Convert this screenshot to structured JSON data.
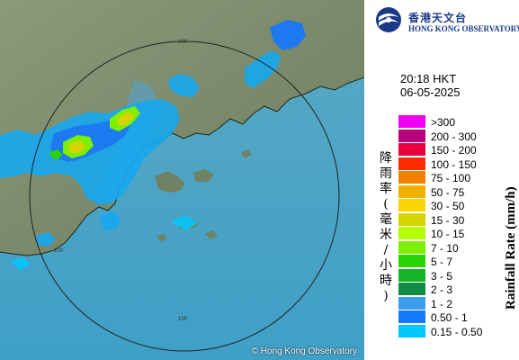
{
  "map": {
    "range_rings": [
      {
        "label": "100"
      },
      {
        "label": "100"
      },
      {
        "label": "100"
      }
    ],
    "copyright": "© Hong Kong Observatory"
  },
  "logo": {
    "name_zh": "香港天文台",
    "name_en": "HONG KONG OBSERVATORY",
    "icon": "hko-emblem-icon",
    "color": "#1a3a86"
  },
  "timestamp": {
    "time": "20:18 HKT",
    "date": "06-05-2025"
  },
  "legend": {
    "title_zh": "降雨率(毫米/小時)",
    "title_en": "Rainfall Rate (mm/h)",
    "items": [
      {
        "label": ">300",
        "color": "#f000f0"
      },
      {
        "label": "200 - 300",
        "color": "#b8007e"
      },
      {
        "label": "150 - 200",
        "color": "#e8003a"
      },
      {
        "label": "100 - 150",
        "color": "#ff2a00"
      },
      {
        "label": "75 - 100",
        "color": "#f08000"
      },
      {
        "label": "50 - 75",
        "color": "#f0b000"
      },
      {
        "label": "30 - 50",
        "color": "#f8d400"
      },
      {
        "label": "15 - 30",
        "color": "#d4d400"
      },
      {
        "label": "10 - 15",
        "color": "#b4ff00"
      },
      {
        "label": "7 - 10",
        "color": "#7cf000"
      },
      {
        "label": "5 - 7",
        "color": "#2ad400"
      },
      {
        "label": "3 - 5",
        "color": "#14b428"
      },
      {
        "label": "2 - 3",
        "color": "#108c48"
      },
      {
        "label": "1 - 2",
        "color": "#3c9cf0"
      },
      {
        "label": "0.50 - 1",
        "color": "#1478ff"
      },
      {
        "label": "0.15 - 0.50",
        "color": "#00c8ff"
      }
    ]
  }
}
